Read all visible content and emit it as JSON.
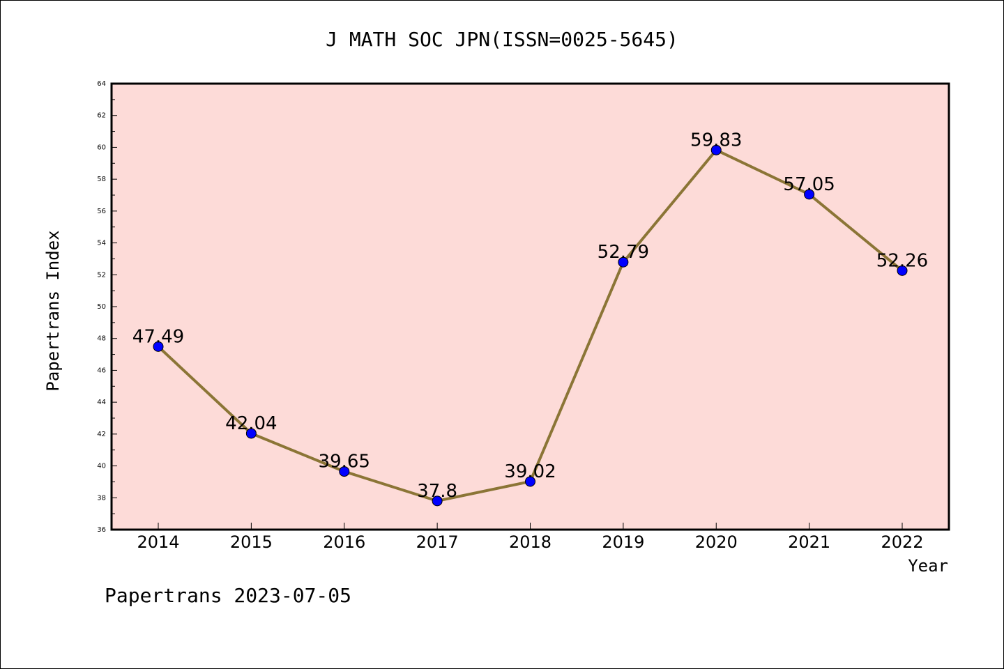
{
  "chart_data": {
    "type": "line",
    "title": "J MATH SOC JPN(ISSN=0025-5645)",
    "xlabel": "Year",
    "ylabel": "Papertrans Index",
    "categories": [
      "2014",
      "2015",
      "2016",
      "2017",
      "2018",
      "2019",
      "2020",
      "2021",
      "2022"
    ],
    "series": [
      {
        "values": [
          47.49,
          42.04,
          39.65,
          37.8,
          39.02,
          52.79,
          59.83,
          57.05,
          52.26
        ],
        "labels": [
          "47.49",
          "42.04",
          "39.65",
          "37.8",
          "39.02",
          "52.79",
          "59.83",
          "57.05",
          "52.26"
        ]
      }
    ],
    "ylim": [
      36,
      64
    ],
    "yticks": [
      "36",
      "38",
      "40",
      "42",
      "44",
      "46",
      "48",
      "50",
      "52",
      "54",
      "56",
      "58",
      "60",
      "62",
      "64"
    ],
    "grid": false,
    "colors": {
      "plot_background": "#fddbd8",
      "line": "#8b7536",
      "marker": "#0000ff"
    }
  },
  "footer": "Papertrans 2023-07-05"
}
